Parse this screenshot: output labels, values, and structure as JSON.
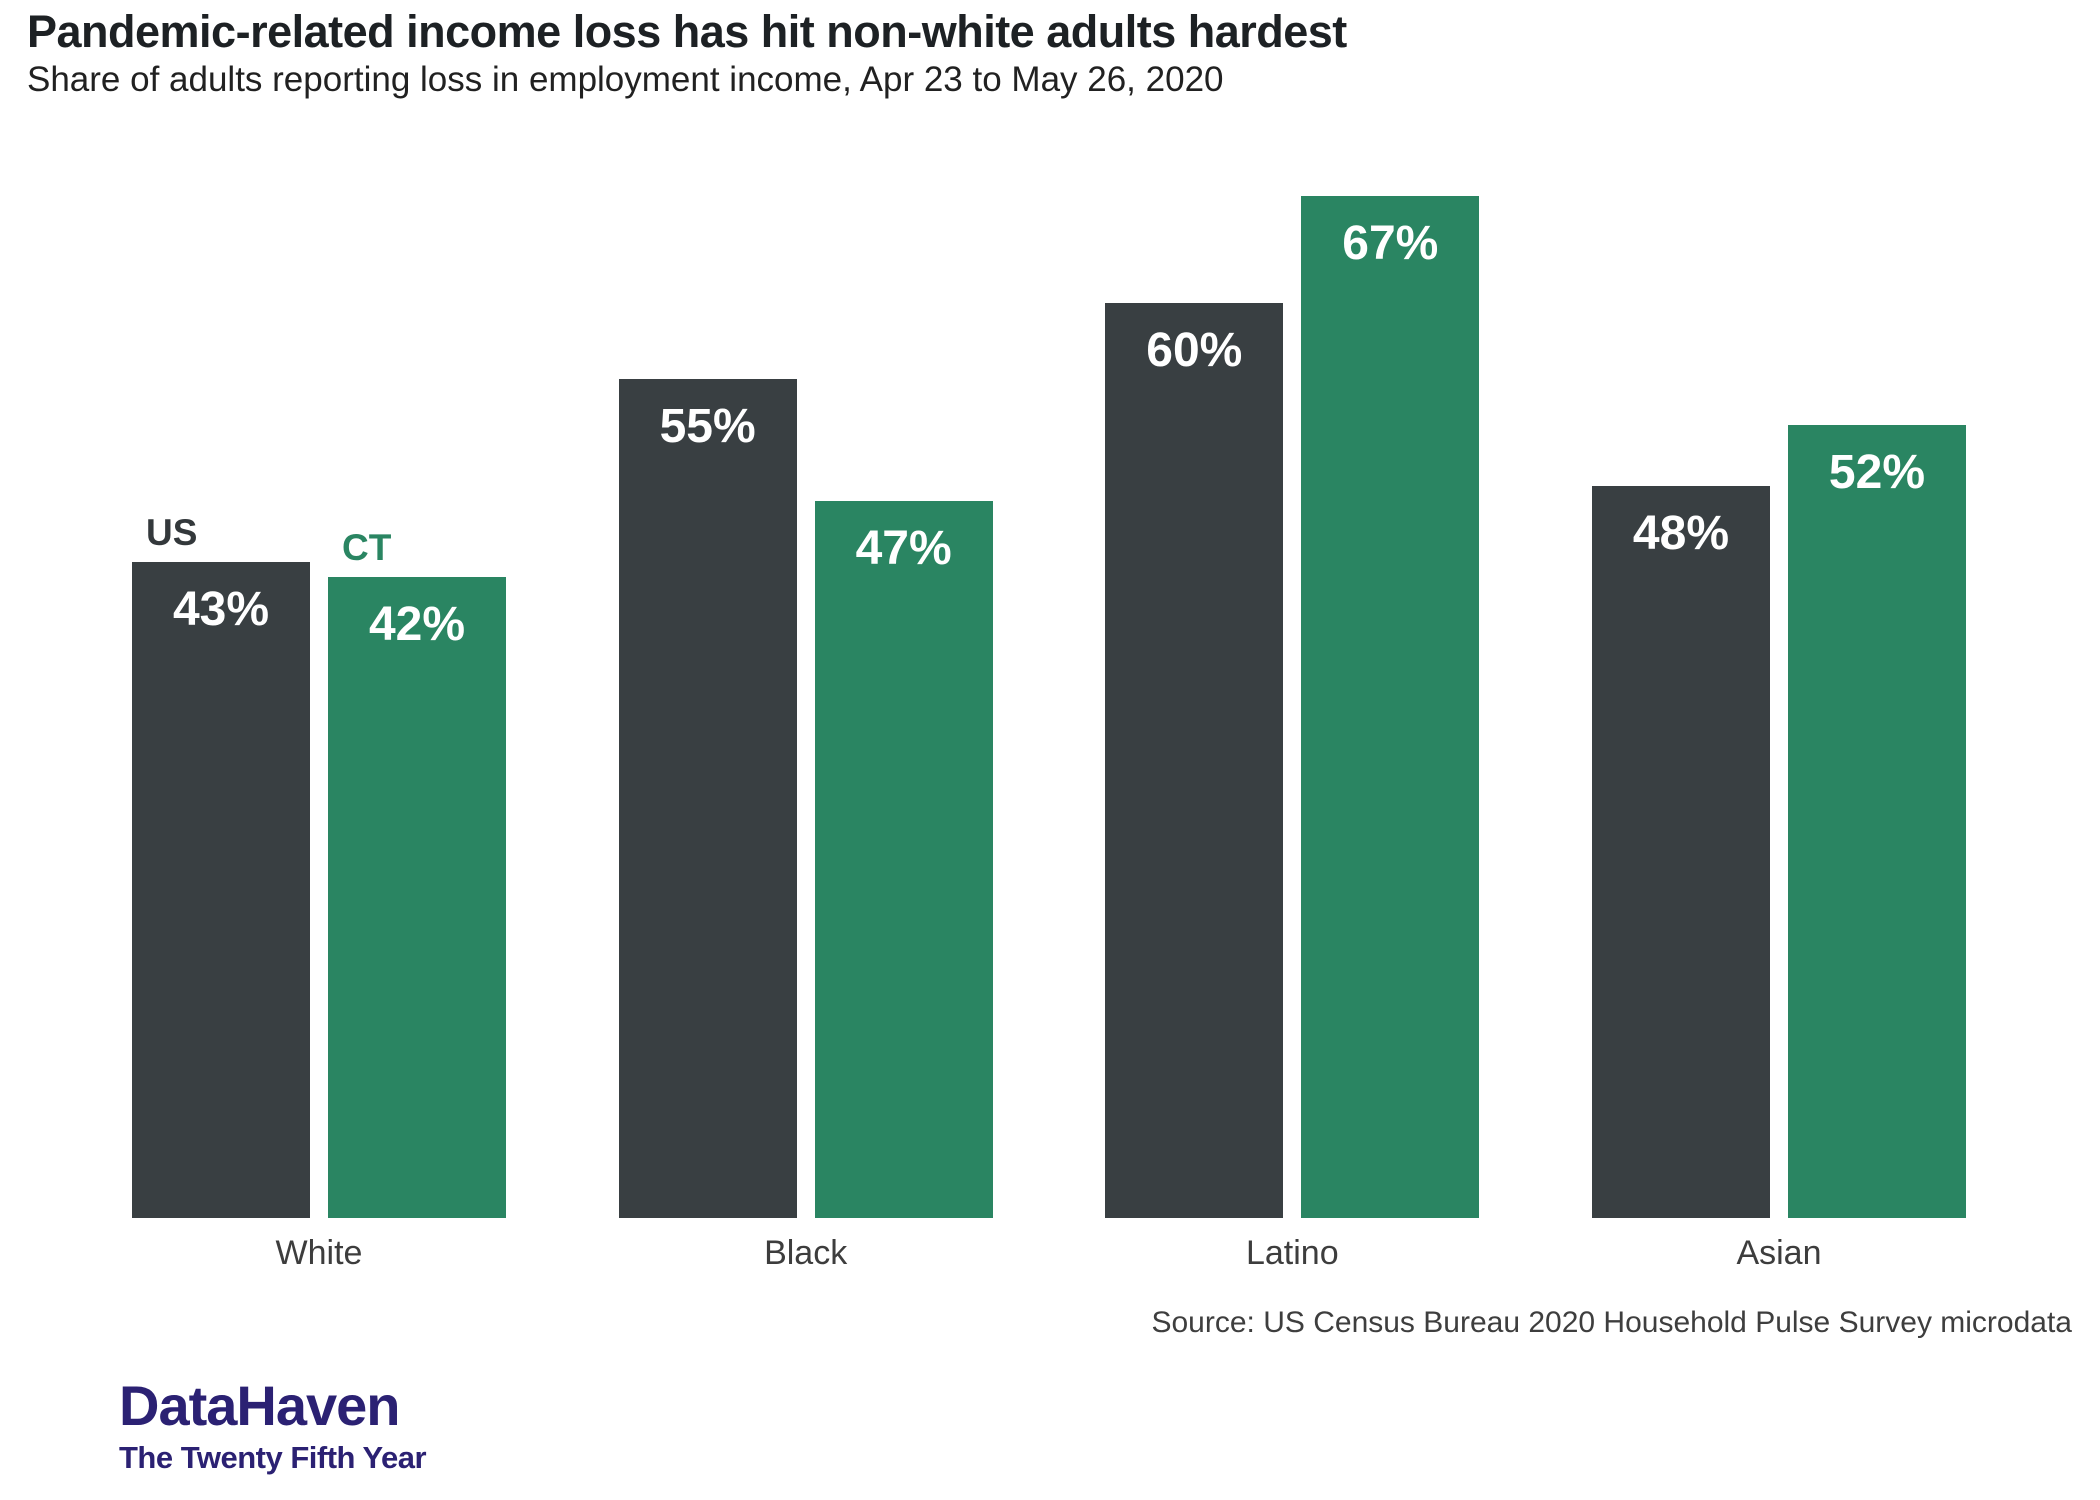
{
  "header": {
    "title": "Pandemic-related income loss has hit non-white adults hardest",
    "subtitle": "Share of adults reporting loss in employment income, Apr 23 to May 26, 2020"
  },
  "chart_data": {
    "type": "bar",
    "title": "Pandemic-related income loss has hit non-white adults hardest",
    "subtitle": "Share of adults reporting loss in employment income, Apr 23 to May 26, 2020",
    "categories": [
      "White",
      "Black",
      "Latino",
      "Asian"
    ],
    "series": [
      {
        "name": "US",
        "color": "#393f42",
        "label_color": "#33383b",
        "values": [
          43,
          55,
          60,
          48
        ]
      },
      {
        "name": "CT",
        "color": "#2a8562",
        "label_color": "#2a8562",
        "values": [
          42,
          47,
          67,
          52
        ]
      }
    ],
    "value_suffix": "%",
    "value_label_color": "#ffffff",
    "xlabel": "",
    "ylabel": "",
    "ylim": [
      0,
      70
    ],
    "grid": false,
    "axes_hidden": true,
    "legend_position": "inline-above-first-group-bars"
  },
  "footer": {
    "source": "Source: US Census Bureau 2020 Household Pulse Survey microdata",
    "logo_title": "DataHaven",
    "logo_subtitle": "The Twenty Fifth Year",
    "logo_color": "#2b2173"
  }
}
